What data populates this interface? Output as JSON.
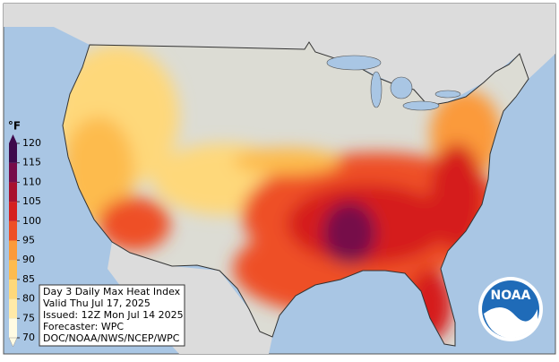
{
  "legend": {
    "unit": "°F",
    "ticks": [
      70,
      75,
      80,
      85,
      90,
      95,
      100,
      105,
      110,
      115,
      120
    ],
    "colors": [
      "#fffbe3",
      "#ffeaa8",
      "#fed87a",
      "#fdbb4e",
      "#fb9a3a",
      "#ee4f26",
      "#d51f1f",
      "#a8102e",
      "#760c4a",
      "#3e0a4c"
    ]
  },
  "info": {
    "lines": [
      "Day 3 Daily Max Heat Index",
      "Valid Thu Jul 17, 2025",
      "Issued: 12Z Mon Jul 14 2025",
      "Forecaster: WPC",
      "DOC/NOAA/NWS/NCEP/WPC"
    ]
  },
  "logo": {
    "text": "NOAA"
  }
}
